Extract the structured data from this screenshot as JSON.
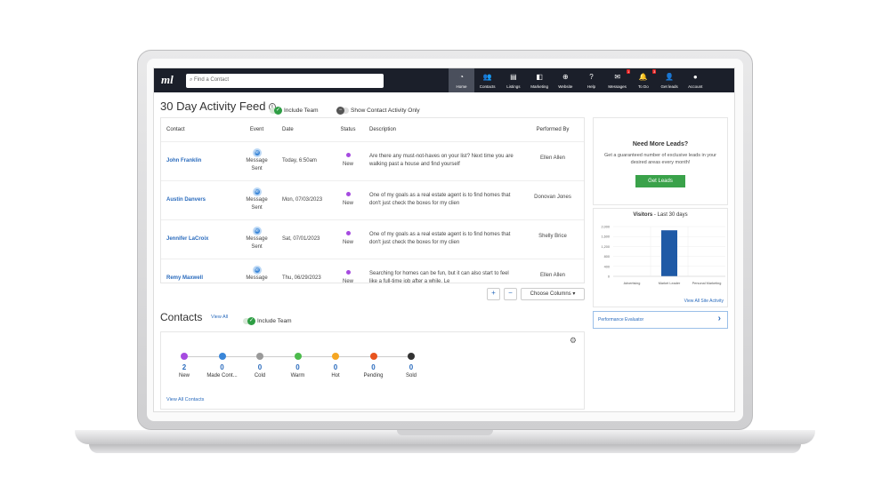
{
  "nav": {
    "search_placeholder": "Find a Contact",
    "items": [
      {
        "label": "Home",
        "icon": "home-icon",
        "glyph": "◔"
      },
      {
        "label": "Contacts",
        "icon": "contacts-icon",
        "glyph": "👥"
      },
      {
        "label": "Listings",
        "icon": "listings-icon",
        "glyph": "▤"
      },
      {
        "label": "Marketing",
        "icon": "marketing-icon",
        "glyph": "◧"
      },
      {
        "label": "Website",
        "icon": "globe-icon",
        "glyph": "⊕"
      },
      {
        "label": "Help",
        "icon": "help-icon",
        "glyph": "?"
      },
      {
        "label": "Messages",
        "icon": "mail-icon",
        "glyph": "✉",
        "badge": "1"
      },
      {
        "label": "To Do",
        "icon": "bell-icon",
        "glyph": "🔔",
        "badge": "3"
      },
      {
        "label": "Get leads",
        "icon": "add-user-icon",
        "glyph": "👤"
      },
      {
        "label": "Account",
        "icon": "account-icon",
        "glyph": "●"
      }
    ]
  },
  "feed": {
    "title": "30 Day Activity Feed",
    "include_team": "Include Team",
    "contact_only": "Show Contact Activity Only",
    "columns": [
      "Contact",
      "Event",
      "Date",
      "Status",
      "Description",
      "Performed By"
    ],
    "rows": [
      {
        "contact": "John Franklin",
        "event": "Message Sent",
        "date": "Today, 6:50am",
        "status": "New",
        "description": "Are there any must-not-haves on your list? Next time you are walking past a house and find yourself",
        "by": "Ellen Allen"
      },
      {
        "contact": "Austin Danvers",
        "event": "Message Sent",
        "date": "Mon, 07/03/2023",
        "status": "New",
        "description": "One of my goals as a real estate agent is to find homes that don't just check the boxes for my clien",
        "by": "Donovan Jones"
      },
      {
        "contact": "Jennifer LaCroix",
        "event": "Message Sent",
        "date": "Sat, 07/01/2023",
        "status": "New",
        "description": "One of my goals as a real estate agent is to find homes that don't just check the boxes for my clien",
        "by": "Shelly Brice"
      },
      {
        "contact": "Remy Maxwell",
        "event": "Message Sent",
        "date": "Thu, 06/29/2023",
        "status": "New",
        "description": "Searching for homes can be fun, but it can also start to feel like a full-time job after a while. Le",
        "by": "Ellen Allen"
      }
    ],
    "plus": "+",
    "minus": "−",
    "choose_columns": "Choose Columns ▾"
  },
  "contacts": {
    "title": "Contacts",
    "view_all": "View All",
    "include_team": "Include Team",
    "view_all_contacts": "View All Contacts",
    "stages": [
      {
        "label": "New",
        "count": "2",
        "color": "#a64be0"
      },
      {
        "label": "Made Cont...",
        "count": "0",
        "color": "#3a86d8"
      },
      {
        "label": "Cold",
        "count": "0",
        "color": "#9a9a9a"
      },
      {
        "label": "Warm",
        "count": "0",
        "color": "#4cbb4c"
      },
      {
        "label": "Hot",
        "count": "0",
        "color": "#f5a623"
      },
      {
        "label": "Pending",
        "count": "0",
        "color": "#e8541e"
      },
      {
        "label": "Sold",
        "count": "0",
        "color": "#333333"
      }
    ]
  },
  "leads": {
    "title": "Need More Leads?",
    "text": "Get a guaranteed number of exclusive leads in your desired areas every month!",
    "button": "Get Leads"
  },
  "visitors": {
    "title_bold": "Visitors",
    "title_rest": " - Last 30 days",
    "link": "View All Site Activity"
  },
  "chart_data": {
    "type": "bar",
    "categories": [
      "Advertising",
      "Market Leader",
      "Personal Marketing"
    ],
    "values": [
      0,
      1850,
      0
    ],
    "ylim": [
      0,
      2000
    ],
    "yticks": [
      "0",
      "400",
      "800",
      "1,200",
      "1,600",
      "2,000"
    ],
    "color": "#1f5aa6",
    "grid": true
  },
  "performance": {
    "label": "Performance Evaluator",
    "chevron": "›"
  }
}
